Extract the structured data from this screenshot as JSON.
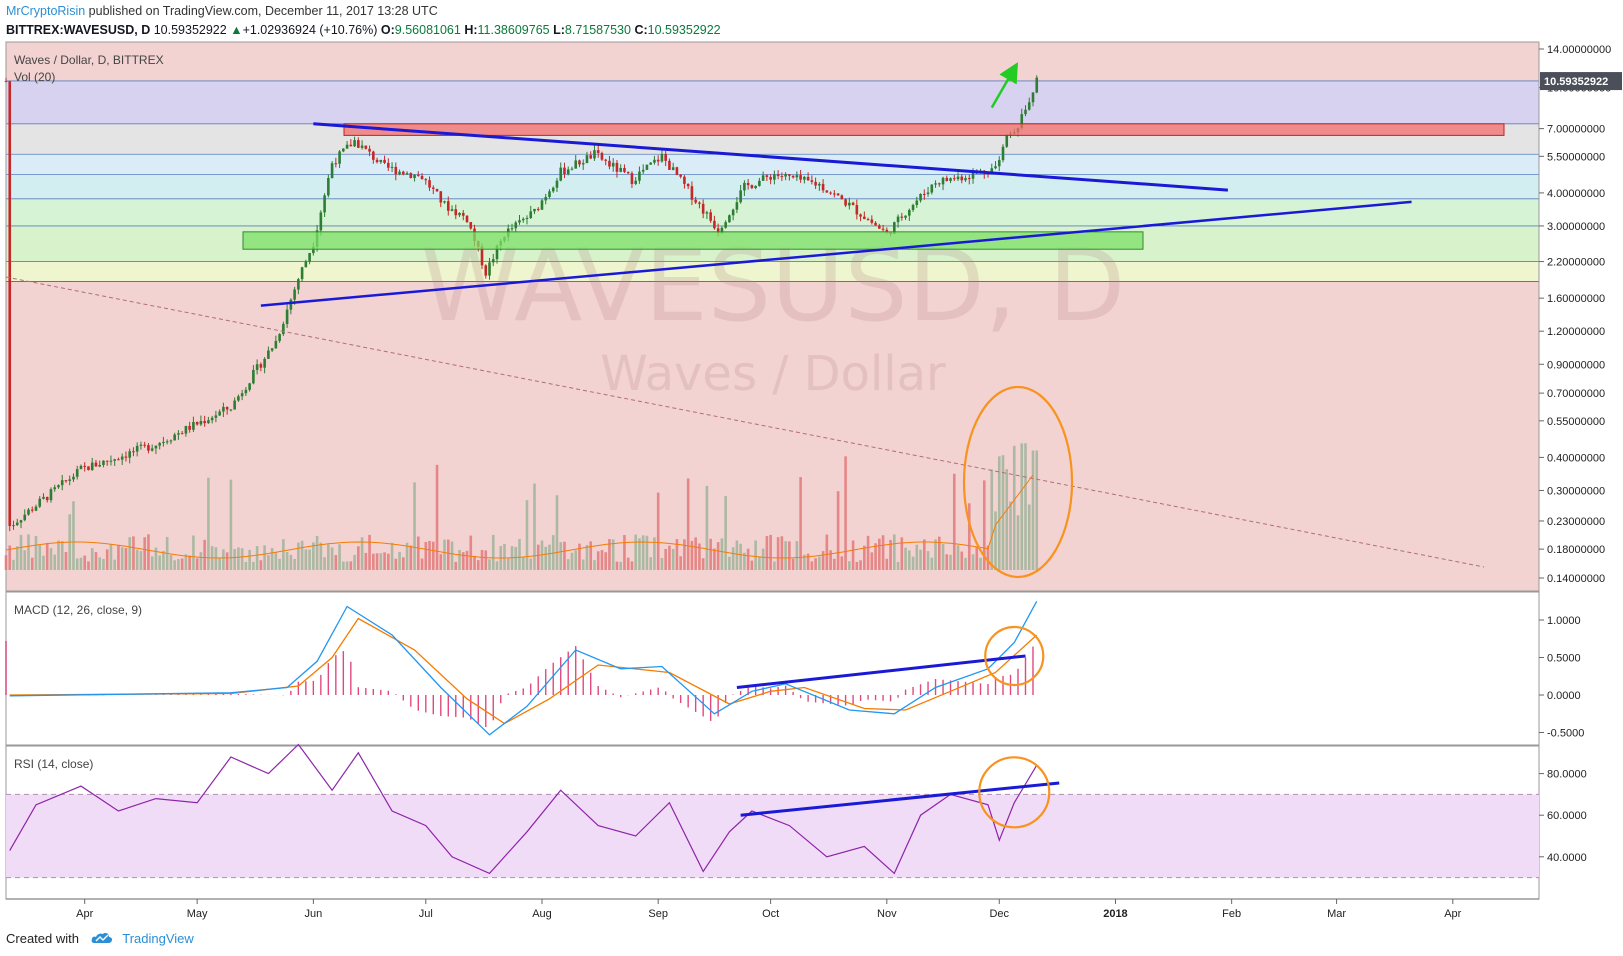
{
  "header": {
    "author": "MrCryptoRisin",
    "published_text": "published on TradingView.com, December 11, 2017 13:28 UTC"
  },
  "symbol_line": {
    "symbol": "BITTREX:WAVESUSD, D",
    "last": "10.59352922",
    "arrow": "▲",
    "change": "+1.02936924 (+10.76%)",
    "o_label": "O:",
    "o": "9.56081061",
    "h_label": "H:",
    "h": "11.38609765",
    "l_label": "L:",
    "l": "8.71587530",
    "c_label": "C:",
    "c": "10.59352922"
  },
  "footer": {
    "created_with": "Created with",
    "brand": "TradingView"
  },
  "colors": {
    "up": "#2e7d32",
    "down": "#c62828",
    "trend": "#1a1ad6",
    "circle": "#f7931e",
    "macd": "#2196f3",
    "signal": "#f57c00",
    "rsi": "#8e24aa",
    "arrow": "#22cc22"
  },
  "chart_data": [
    {
      "type": "candlestick",
      "title": "Waves / Dollar, D, BITTREX",
      "watermark": "WAVESUSD, D",
      "watermark_sub": "Waves / Dollar",
      "volume_label": "Vol (20)",
      "last_price_label": "10.59352922",
      "y_scale": "log",
      "y_ticks": [
        "14.00000000",
        "10.00000000",
        "7.00000000",
        "5.50000000",
        "4.00000000",
        "3.00000000",
        "2.20000000",
        "1.60000000",
        "1.20000000",
        "0.90000000",
        "0.70000000",
        "0.55000000",
        "0.40000000",
        "0.30000000",
        "0.23000000",
        "0.18000000",
        "0.14000000"
      ],
      "y_tick_values": [
        14,
        10,
        7,
        5.5,
        4,
        3,
        2.2,
        1.6,
        1.2,
        0.9,
        0.7,
        0.55,
        0.4,
        0.3,
        0.23,
        0.18,
        0.14
      ],
      "x_ticks": [
        "Apr",
        "May",
        "Jun",
        "Jul",
        "Aug",
        "Sep",
        "Oct",
        "Nov",
        "Dec",
        "2018",
        "Feb",
        "Mar",
        "Apr"
      ],
      "x_range": [
        "2017-03-11",
        "2018-04-24"
      ],
      "approx_close_path": [
        [
          "2017-03-12",
          0.22
        ],
        [
          "2017-03-31",
          0.36
        ],
        [
          "2017-04-20",
          0.45
        ],
        [
          "2017-05-10",
          0.62
        ],
        [
          "2017-05-22",
          1.1
        ],
        [
          "2017-05-28",
          1.9
        ],
        [
          "2017-06-01",
          2.6
        ],
        [
          "2017-06-06",
          5.2
        ],
        [
          "2017-06-12",
          6.3
        ],
        [
          "2017-06-20",
          5.0
        ],
        [
          "2017-06-30",
          4.6
        ],
        [
          "2017-07-06",
          3.6
        ],
        [
          "2017-07-12",
          3.2
        ],
        [
          "2017-07-17",
          2.0
        ],
        [
          "2017-07-22",
          2.8
        ],
        [
          "2017-07-30",
          3.4
        ],
        [
          "2017-08-06",
          4.8
        ],
        [
          "2017-08-15",
          5.6
        ],
        [
          "2017-08-25",
          4.5
        ],
        [
          "2017-09-02",
          5.5
        ],
        [
          "2017-09-12",
          3.6
        ],
        [
          "2017-09-17",
          2.9
        ],
        [
          "2017-09-24",
          4.2
        ],
        [
          "2017-10-02",
          4.7
        ],
        [
          "2017-10-14",
          4.3
        ],
        [
          "2017-10-22",
          3.6
        ],
        [
          "2017-11-01",
          2.8
        ],
        [
          "2017-11-06",
          3.4
        ],
        [
          "2017-11-14",
          4.4
        ],
        [
          "2017-11-24",
          4.7
        ],
        [
          "2017-11-30",
          5.0
        ],
        [
          "2017-12-03",
          6.6
        ],
        [
          "2017-12-06",
          7.3
        ],
        [
          "2017-12-09",
          8.8
        ],
        [
          "2017-12-11",
          10.59
        ]
      ],
      "horizontal_levels": [
        10.6,
        7.3,
        5.6,
        4.7,
        3.8,
        3.0,
        2.2
      ],
      "annotations": [
        "resistance zone ~7",
        "support zone ~2.5",
        "descending trendline",
        "ascending trendline",
        "volume spike circled",
        "green up arrow"
      ]
    },
    {
      "type": "line",
      "title": "MACD (12, 26, close, 9)",
      "y_ticks": [
        "1.0000",
        "0.5000",
        "0.0000",
        "-0.5000"
      ],
      "y_tick_values": [
        1,
        0.5,
        0,
        -0.5
      ],
      "series": [
        {
          "name": "MACD",
          "points": [
            [
              "2017-03-12",
              -0.01
            ],
            [
              "2017-05-10",
              0.03
            ],
            [
              "2017-05-25",
              0.1
            ],
            [
              "2017-06-02",
              0.45
            ],
            [
              "2017-06-10",
              1.18
            ],
            [
              "2017-06-22",
              0.8
            ],
            [
              "2017-07-05",
              0.1
            ],
            [
              "2017-07-18",
              -0.53
            ],
            [
              "2017-07-28",
              -0.15
            ],
            [
              "2017-08-10",
              0.6
            ],
            [
              "2017-08-22",
              0.35
            ],
            [
              "2017-09-02",
              0.38
            ],
            [
              "2017-09-16",
              -0.25
            ],
            [
              "2017-09-26",
              0.05
            ],
            [
              "2017-10-05",
              0.15
            ],
            [
              "2017-10-22",
              -0.2
            ],
            [
              "2017-11-03",
              -0.25
            ],
            [
              "2017-11-14",
              0.1
            ],
            [
              "2017-11-28",
              0.35
            ],
            [
              "2017-12-05",
              0.7
            ],
            [
              "2017-12-11",
              1.25
            ]
          ]
        },
        {
          "name": "Signal",
          "points": [
            [
              "2017-03-12",
              0.0
            ],
            [
              "2017-05-10",
              0.02
            ],
            [
              "2017-05-28",
              0.12
            ],
            [
              "2017-06-06",
              0.5
            ],
            [
              "2017-06-13",
              1.02
            ],
            [
              "2017-06-28",
              0.6
            ],
            [
              "2017-07-12",
              -0.05
            ],
            [
              "2017-07-22",
              -0.38
            ],
            [
              "2017-08-03",
              -0.05
            ],
            [
              "2017-08-16",
              0.4
            ],
            [
              "2017-09-04",
              0.3
            ],
            [
              "2017-09-20",
              -0.12
            ],
            [
              "2017-10-01",
              0.05
            ],
            [
              "2017-10-10",
              0.1
            ],
            [
              "2017-10-26",
              -0.18
            ],
            [
              "2017-11-06",
              -0.2
            ],
            [
              "2017-11-18",
              0.05
            ],
            [
              "2017-11-30",
              0.3
            ],
            [
              "2017-12-11",
              0.8
            ]
          ]
        }
      ]
    },
    {
      "type": "line",
      "title": "RSI (14, close)",
      "y_ticks": [
        "80.0000",
        "60.0000",
        "40.0000"
      ],
      "y_tick_values": [
        80,
        60,
        40
      ],
      "upper_band": 70,
      "lower_band": 30,
      "series": [
        {
          "name": "RSI",
          "points": [
            [
              "2017-03-12",
              43
            ],
            [
              "2017-03-19",
              65
            ],
            [
              "2017-03-31",
              74
            ],
            [
              "2017-04-10",
              62
            ],
            [
              "2017-04-20",
              68
            ],
            [
              "2017-05-01",
              66
            ],
            [
              "2017-05-10",
              88
            ],
            [
              "2017-05-20",
              80
            ],
            [
              "2017-05-28",
              94
            ],
            [
              "2017-06-06",
              72
            ],
            [
              "2017-06-13",
              90
            ],
            [
              "2017-06-22",
              62
            ],
            [
              "2017-07-01",
              55
            ],
            [
              "2017-07-08",
              40
            ],
            [
              "2017-07-18",
              32
            ],
            [
              "2017-07-28",
              52
            ],
            [
              "2017-08-06",
              72
            ],
            [
              "2017-08-16",
              55
            ],
            [
              "2017-08-26",
              50
            ],
            [
              "2017-09-04",
              66
            ],
            [
              "2017-09-13",
              33
            ],
            [
              "2017-09-20",
              52
            ],
            [
              "2017-09-26",
              62
            ],
            [
              "2017-10-06",
              55
            ],
            [
              "2017-10-16",
              40
            ],
            [
              "2017-10-26",
              45
            ],
            [
              "2017-11-03",
              32
            ],
            [
              "2017-11-10",
              60
            ],
            [
              "2017-11-18",
              70
            ],
            [
              "2017-11-28",
              65
            ],
            [
              "2017-12-01",
              48
            ],
            [
              "2017-12-05",
              66
            ],
            [
              "2017-12-11",
              84
            ]
          ]
        }
      ]
    }
  ]
}
